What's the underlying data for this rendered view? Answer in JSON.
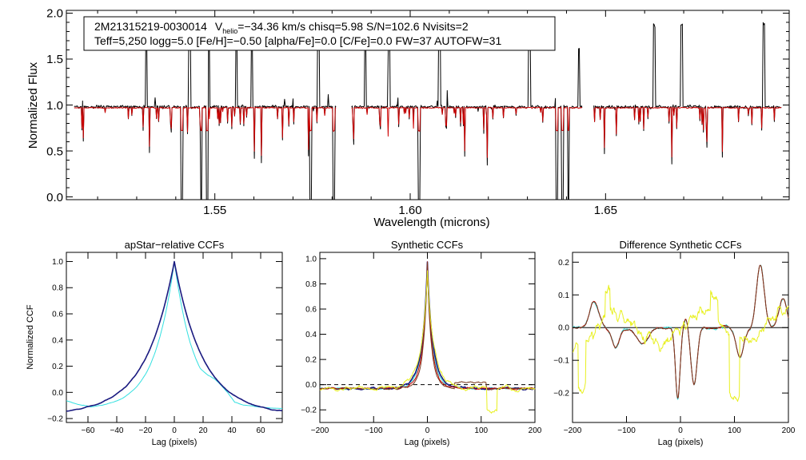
{
  "header": {
    "object_id": "2M21315219-0030014",
    "vhelio_label": "V",
    "vhelio_sub": "helio",
    "line1_rest": "=−34.36 km/s  chisq=5.98  S/N=102.6  Nvisits=2",
    "line2": "Teff=5,250 logg=5.0 [Fe/H]=−0.50 [alpha/Fe]=0.0 [C/Fe]=0.0 FW=37 AUTOFW=31"
  },
  "colors": {
    "observed": "#000000",
    "model": "#cc0000",
    "cyan": "#33e0e0",
    "navy": "#1a1a80",
    "red": "#cc0000",
    "brown": "#7a3a20",
    "yellow": "#e8f020"
  },
  "chart_data": [
    {
      "id": "spectrum",
      "type": "line",
      "title": "",
      "xlabel": "Wavelength (microns)",
      "ylabel": "Normalized Flux",
      "xlim": [
        1.512,
        1.697
      ],
      "ylim": [
        -0.03,
        2.03
      ],
      "xticks": [
        1.55,
        1.6,
        1.65
      ],
      "xtick_labels": [
        "1.55",
        "1.60",
        "1.65"
      ],
      "yticks": [
        0.0,
        0.5,
        1.0,
        1.5,
        2.0
      ],
      "ytick_labels": [
        "0.0",
        "0.5",
        "1.0",
        "1.5",
        "2.0"
      ],
      "chips": [
        [
          1.514,
          1.581
        ],
        [
          1.585,
          1.644
        ],
        [
          1.647,
          1.695
        ]
      ],
      "series": [
        {
          "name": "observed",
          "continuum": 0.98
        },
        {
          "name": "model",
          "continuum": 0.97
        }
      ],
      "strong_absorption_lines": [
        1.5415,
        1.5465,
        1.548,
        1.5745,
        1.5805,
        1.6023,
        1.6375,
        1.639,
        1.6405,
        1.6455
      ],
      "emission_spikes": [
        1.5325,
        1.5435,
        1.5485,
        1.5555,
        1.5595,
        1.5765,
        1.5885,
        1.5945,
        1.6075,
        1.6305,
        1.6432,
        1.6625,
        1.6695,
        1.6905
      ]
    },
    {
      "id": "ccf1",
      "type": "line",
      "title": "apStar−relative CCFs",
      "xlabel": "Lag (pixels)",
      "ylabel": "Normalized CCF",
      "xlim": [
        -75,
        75
      ],
      "ylim": [
        -0.23,
        1.07
      ],
      "xticks": [
        -60,
        -40,
        -20,
        0,
        20,
        40,
        60
      ],
      "xtick_labels": [
        "−60",
        "−40",
        "−20",
        "0",
        "20",
        "40",
        "60"
      ],
      "yticks": [
        -0.2,
        0.0,
        0.2,
        0.4,
        0.6,
        0.8,
        1.0
      ],
      "ytick_labels": [
        "−0.2",
        "0.0",
        "0.2",
        "0.4",
        "0.6",
        "0.8",
        "1.0"
      ],
      "series": [
        {
          "name": "cyan",
          "peak": 1.0,
          "width": 14,
          "floor": -0.17
        },
        {
          "name": "navy",
          "peak": 1.0,
          "width": 20,
          "floor": -0.17
        }
      ]
    },
    {
      "id": "ccf2",
      "type": "line",
      "title": "Synthetic CCFs",
      "xlabel": "Lag (pixels)",
      "ylabel": "",
      "xlim": [
        -200,
        200
      ],
      "ylim": [
        -0.3,
        1.05
      ],
      "xticks": [
        -200,
        -100,
        0,
        100,
        200
      ],
      "xtick_labels": [
        "−200",
        "−100",
        "0",
        "100",
        "200"
      ],
      "yticks": [
        -0.2,
        0.0,
        0.2,
        0.4,
        0.6,
        0.8,
        1.0
      ],
      "ytick_labels": [
        "−0.2",
        "0.0",
        "0.2",
        "0.4",
        "0.6",
        "0.8",
        "1.0"
      ],
      "reference_line": 0.0,
      "series": [
        {
          "name": "cyan",
          "peak": 1.0
        },
        {
          "name": "navy",
          "peak": 1.0
        },
        {
          "name": "red",
          "peak": 1.0
        },
        {
          "name": "brown",
          "peak": 1.0
        },
        {
          "name": "yellow",
          "peak": 0.93
        }
      ]
    },
    {
      "id": "ccf3",
      "type": "line",
      "title": "Difference Synthetic CCFs",
      "xlabel": "Lag (pixels)",
      "ylabel": "",
      "xlim": [
        -200,
        200
      ],
      "ylim": [
        -0.29,
        0.23
      ],
      "xticks": [
        -200,
        -100,
        0,
        100,
        200
      ],
      "xtick_labels": [
        "−200",
        "−100",
        "0",
        "100",
        "200"
      ],
      "yticks": [
        -0.2,
        -0.1,
        0.0,
        0.1,
        0.2
      ],
      "ytick_labels": [
        "−0.2",
        "−0.1",
        "0.0",
        "0.1",
        "0.2"
      ],
      "reference_line": 0.0,
      "series": [
        {
          "name": "cyan"
        },
        {
          "name": "red"
        },
        {
          "name": "brown"
        },
        {
          "name": "yellow"
        }
      ]
    }
  ]
}
